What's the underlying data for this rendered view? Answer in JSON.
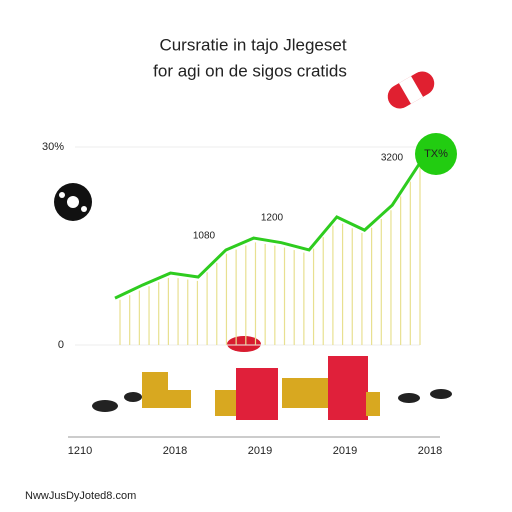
{
  "chart_data": {
    "type": "line",
    "title": "Cursratie in tajo Jlegeset",
    "subtitle": "for agi on de sigos cratids",
    "categories": [
      null,
      null,
      null,
      null,
      null,
      null,
      null,
      null,
      null,
      null,
      null,
      null
    ],
    "series": [
      {
        "name": null,
        "color": "#2ecc1f",
        "values": [
          7.1,
          9.1,
          10.9,
          10.3,
          14.4,
          16.2,
          15.5,
          14.4,
          19.4,
          17.4,
          21.2,
          27.6
        ]
      }
    ],
    "ylim": [
      0,
      30
    ],
    "yticks": [
      0,
      {
        "value": 30,
        "label": "30%"
      }
    ],
    "x_axis_labels": [
      "1210",
      "2018",
      "2019",
      "2019",
      "2018"
    ],
    "annotations": [
      "1080",
      "1200",
      "3200"
    ],
    "badge": "TX%",
    "footer": "NwwJusDyJoted8.com"
  }
}
